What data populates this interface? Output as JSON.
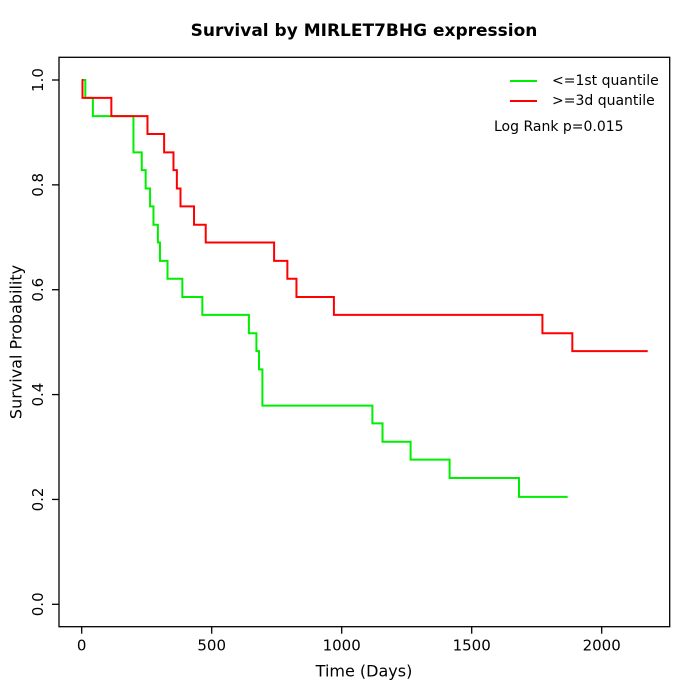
{
  "chart_data": {
    "type": "line",
    "subtype": "kaplan-meier-step",
    "title": "Survival by MIRLET7BHG expression",
    "xlabel": "Time (Days)",
    "ylabel": "Survival Probability",
    "x_ticks": [
      0,
      500,
      1000,
      1500,
      2000
    ],
    "y_tick_labels": [
      "0.0",
      "0.2",
      "0.4",
      "0.6",
      "0.8",
      "1.0"
    ],
    "y_ticks": [
      0.0,
      0.2,
      0.4,
      0.6,
      0.8,
      1.0
    ],
    "xlim": [
      0,
      2260
    ],
    "ylim": [
      0.0,
      1.0
    ],
    "grid": false,
    "legend_position": "top-right",
    "annotation": "Log Rank p=0.015",
    "axis_color": "#000000",
    "series": [
      {
        "name": "<=1st quantile",
        "color": "#00ee00",
        "end_time": 1869,
        "steps": [
          [
            0,
            1.0
          ],
          [
            14,
            0.966
          ],
          [
            43,
            0.931
          ],
          [
            199,
            0.862
          ],
          [
            231,
            0.828
          ],
          [
            246,
            0.793
          ],
          [
            263,
            0.759
          ],
          [
            276,
            0.724
          ],
          [
            293,
            0.69
          ],
          [
            301,
            0.655
          ],
          [
            330,
            0.621
          ],
          [
            387,
            0.586
          ],
          [
            464,
            0.552
          ],
          [
            643,
            0.517
          ],
          [
            672,
            0.483
          ],
          [
            682,
            0.448
          ],
          [
            695,
            0.379
          ],
          [
            1118,
            0.345
          ],
          [
            1157,
            0.31
          ],
          [
            1265,
            0.276
          ],
          [
            1415,
            0.241
          ],
          [
            1682,
            0.205
          ]
        ]
      },
      {
        "name": ">=3d quantile",
        "color": "#ff0000",
        "end_time": 2177,
        "steps": [
          [
            0,
            1.0
          ],
          [
            3,
            0.966
          ],
          [
            114,
            0.931
          ],
          [
            253,
            0.897
          ],
          [
            317,
            0.862
          ],
          [
            353,
            0.828
          ],
          [
            366,
            0.793
          ],
          [
            380,
            0.759
          ],
          [
            432,
            0.724
          ],
          [
            477,
            0.69
          ],
          [
            740,
            0.655
          ],
          [
            791,
            0.621
          ],
          [
            826,
            0.586
          ],
          [
            970,
            0.552
          ],
          [
            1772,
            0.517
          ],
          [
            1887,
            0.483
          ]
        ]
      }
    ]
  },
  "legend": {
    "items": [
      {
        "label": "<=1st quantile",
        "color": "#00ee00"
      },
      {
        "label": ">=3d quantile",
        "color": "#ff0000"
      }
    ],
    "note": "Log Rank p=0.015"
  }
}
